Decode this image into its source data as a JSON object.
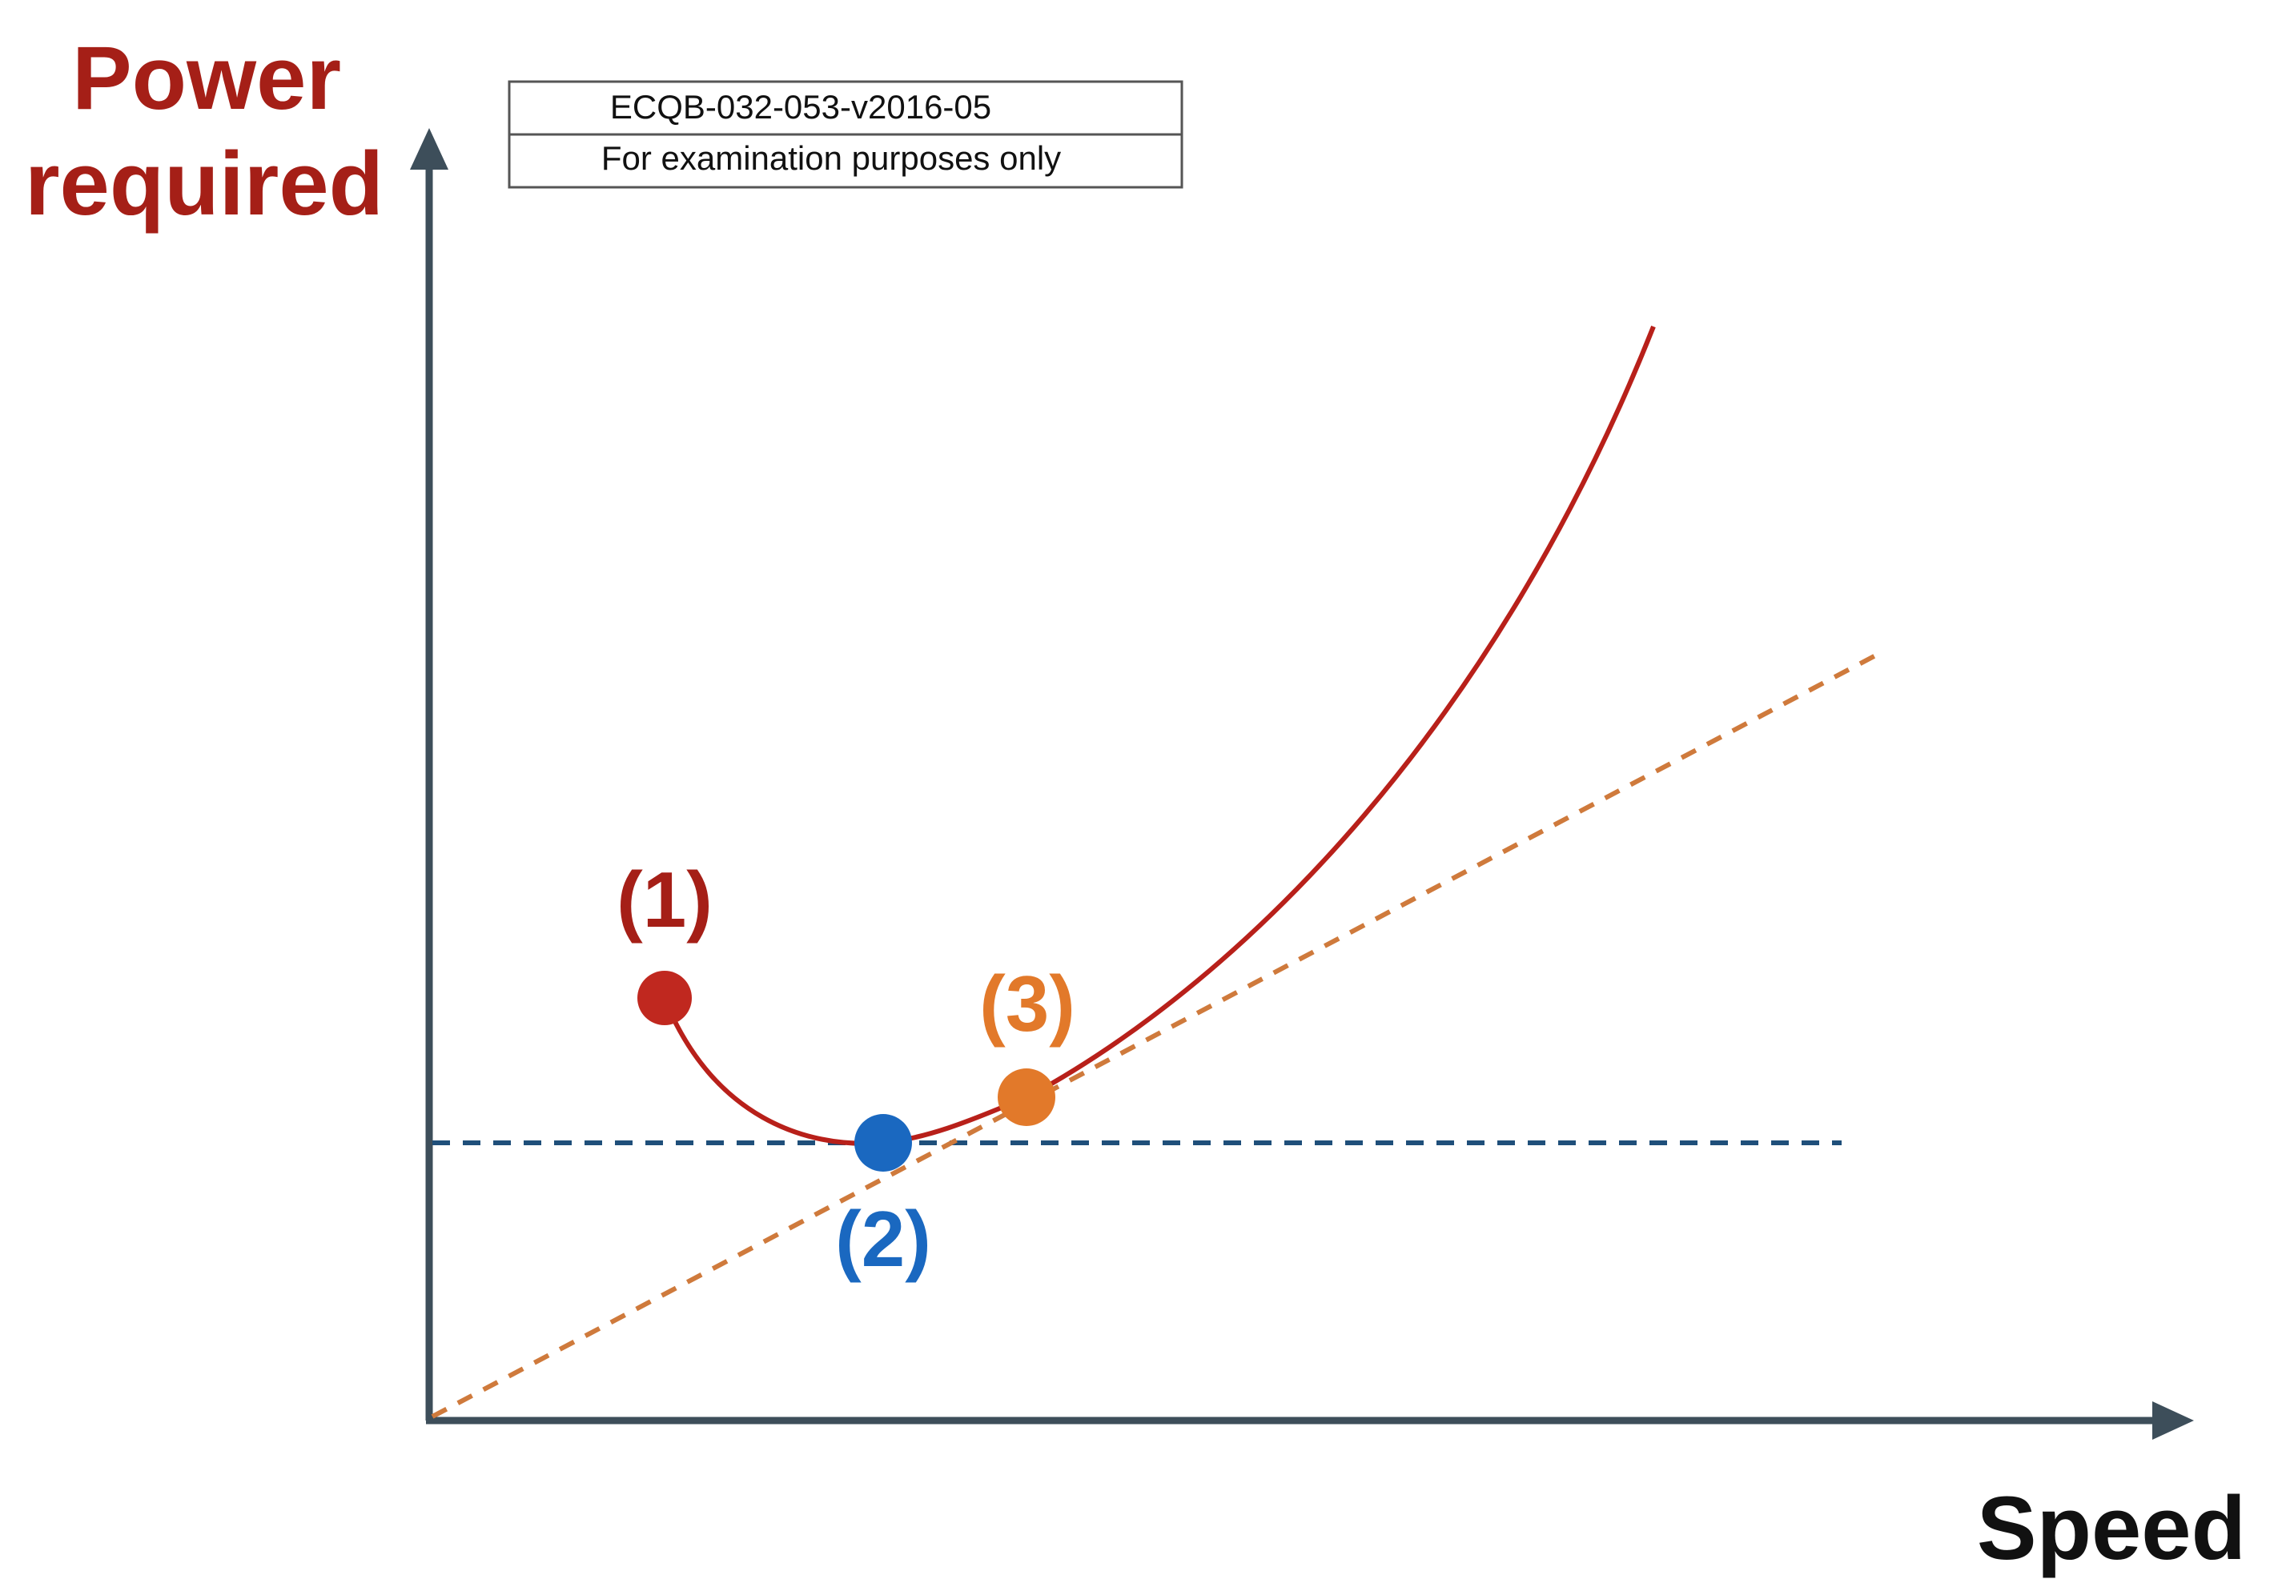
{
  "header_box": {
    "line1": "ECQB-032-053-v2016-05",
    "line2": "For examination purposes only"
  },
  "axes": {
    "y_label_line1": "Power",
    "y_label_line2": "required",
    "x_label": "Speed"
  },
  "points": [
    {
      "label": "(1)",
      "color": "#c0281f"
    },
    {
      "label": "(2)",
      "color": "#1a68c0"
    },
    {
      "label": "(3)",
      "color": "#e2792a"
    }
  ],
  "colors": {
    "axis": "#3d4e5a",
    "curve": "#b8201a",
    "y_label": "#a51f17",
    "x_label": "#111111",
    "horizontal_dashed": "#1f4f7a",
    "tangent_dashed": "#cf7a3c"
  }
}
